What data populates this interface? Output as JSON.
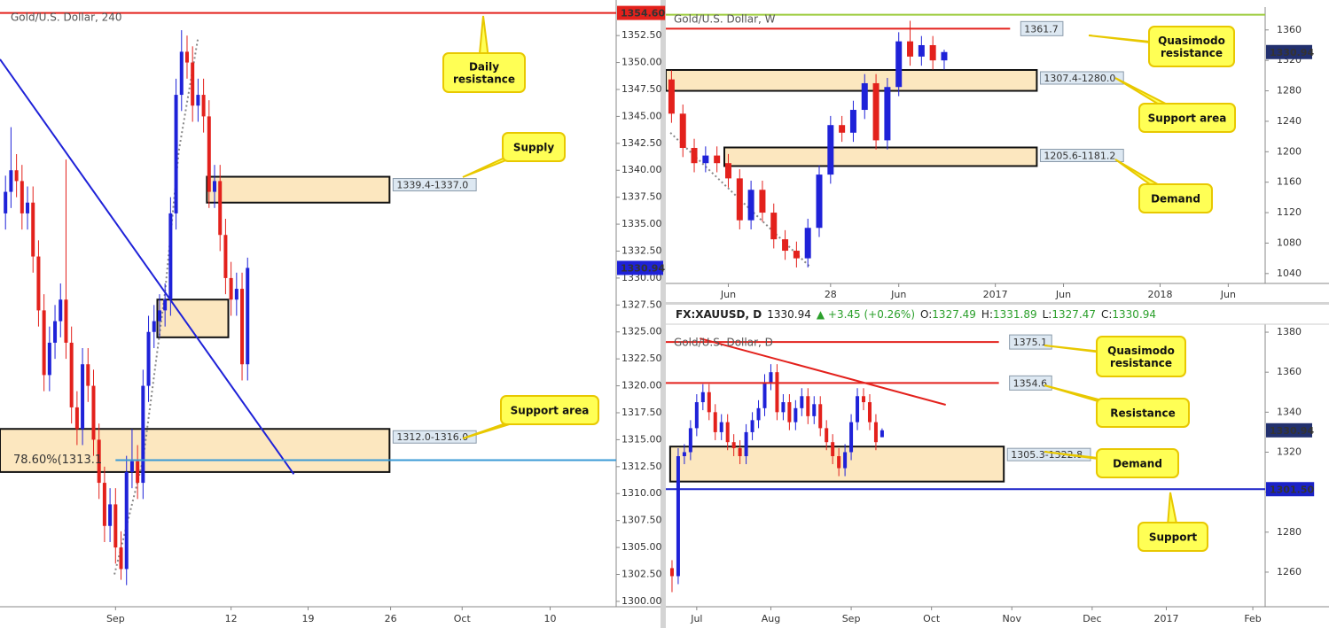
{
  "chart_data": [
    {
      "type": "candlestick",
      "title": "Gold/U.S. Dollar, 240",
      "x": [
        0,
        1,
        2,
        3,
        4,
        5,
        6,
        7,
        8,
        9,
        10,
        11,
        12,
        13,
        14,
        15,
        16,
        17,
        18,
        19,
        20,
        21,
        22,
        23,
        24,
        25,
        26,
        27,
        28,
        29,
        30,
        31,
        32,
        33,
        34,
        35,
        36,
        37,
        38,
        39,
        40,
        41,
        42,
        43,
        44
      ],
      "open": [
        1336,
        1338,
        1340,
        1339,
        1336,
        1337,
        1332,
        1327,
        1321,
        1324,
        1326,
        1328,
        1324,
        1318,
        1316,
        1322,
        1320,
        1315,
        1311,
        1307,
        1309,
        1305,
        1303,
        1312,
        1313,
        1311,
        1320,
        1325,
        1326,
        1327,
        1328,
        1336,
        1347,
        1351,
        1350,
        1346,
        1347,
        1345,
        1338,
        1339,
        1334,
        1330,
        1328,
        1329,
        1322
      ],
      "high": [
        1339.5,
        1344,
        1341.5,
        1340.5,
        1338.5,
        1338.5,
        1333.5,
        1328.5,
        1325.5,
        1327.5,
        1329.5,
        1341,
        1325.5,
        1319.5,
        1323.5,
        1323.5,
        1321.5,
        1316.5,
        1312.5,
        1310.5,
        1310.5,
        1306.5,
        1313.5,
        1316,
        1314.5,
        1321.5,
        1326.5,
        1327.5,
        1328.5,
        1329.5,
        1337.5,
        1348.5,
        1353,
        1352.5,
        1351.5,
        1348.5,
        1348.5,
        1346.5,
        1340.5,
        1340.5,
        1335.5,
        1331.5,
        1330.5,
        1330.5,
        1331.89
      ],
      "low": [
        1334.5,
        1336.5,
        1337.5,
        1334.5,
        1334.5,
        1330.5,
        1325.5,
        1319.5,
        1319.5,
        1322.5,
        1324.5,
        1322.5,
        1316.5,
        1314.5,
        1314.5,
        1318.5,
        1313.5,
        1309.5,
        1305.5,
        1305.5,
        1303.5,
        1302,
        1301.5,
        1310.5,
        1309.5,
        1309.5,
        1318.5,
        1323.5,
        1324.5,
        1325.5,
        1326.5,
        1334.5,
        1345.5,
        1348.5,
        1344.5,
        1344.5,
        1343.5,
        1336.5,
        1336.5,
        1332.5,
        1328.5,
        1326.5,
        1326.5,
        1320.5,
        1320.5
      ],
      "close": [
        1338,
        1340,
        1339,
        1336,
        1337,
        1332,
        1327,
        1321,
        1324,
        1326,
        1328,
        1324,
        1318,
        1316,
        1322,
        1320,
        1315,
        1311,
        1307,
        1309,
        1305,
        1303,
        1312,
        1313,
        1311,
        1320,
        1325,
        1326,
        1327,
        1328,
        1336,
        1347,
        1351,
        1350,
        1346,
        1347,
        1345,
        1338,
        1339,
        1334,
        1330,
        1328,
        1329,
        1322,
        1330.94
      ],
      "up_color": "#1f22d8",
      "down_color": "#e3211c",
      "zone_color": "#fce7bf",
      "xlim": [
        -1,
        111
      ],
      "ylim": [
        1299.5,
        1355.8
      ],
      "xticks": [
        {
          "value": 20,
          "label": "Sep"
        },
        {
          "value": 41,
          "label": "12"
        },
        {
          "value": 55,
          "label": "19"
        },
        {
          "value": 70,
          "label": "26"
        },
        {
          "value": 83,
          "label": "Oct"
        },
        {
          "value": 99,
          "label": "10"
        }
      ],
      "yticks": [
        {
          "value": 1300,
          "label": "1300.00"
        },
        {
          "value": 1302.5,
          "label": "1302.50"
        },
        {
          "value": 1305,
          "label": "1305.00"
        },
        {
          "value": 1307.5,
          "label": "1307.50"
        },
        {
          "value": 1310,
          "label": "1310.00"
        },
        {
          "value": 1312.5,
          "label": "1312.50"
        },
        {
          "value": 1315,
          "label": "1315.00"
        },
        {
          "value": 1317.5,
          "label": "1317.50"
        },
        {
          "value": 1320,
          "label": "1320.00"
        },
        {
          "value": 1322.5,
          "label": "1322.50"
        },
        {
          "value": 1325,
          "label": "1325.00"
        },
        {
          "value": 1327.5,
          "label": "1327.50"
        },
        {
          "value": 1330,
          "label": "1330.00"
        },
        {
          "value": 1332.5,
          "label": "1332.50"
        },
        {
          "value": 1335,
          "label": "1335.00"
        },
        {
          "value": 1337.5,
          "label": "1337.50"
        },
        {
          "value": 1340,
          "label": "1340.00"
        },
        {
          "value": 1342.5,
          "label": "1342.50"
        },
        {
          "value": 1345,
          "label": "1345.00"
        },
        {
          "value": 1347.5,
          "label": "1347.50"
        },
        {
          "value": 1350,
          "label": "1350.00"
        },
        {
          "value": 1352.5,
          "label": "1352.50"
        }
      ],
      "zones": [
        {
          "label": "1339.4-1337.0",
          "high": 1339.4,
          "low": 1337.0,
          "x": [
            36.6,
            69.8
          ]
        },
        {
          "high": 1328,
          "low": 1324.5,
          "x": [
            27.6,
            40.5
          ]
        },
        {
          "label": "1312.0-1316.0",
          "high": 1316.0,
          "low": 1312.0,
          "x": [
            -1,
            69.8
          ]
        }
      ],
      "levels": [
        {
          "value": 1354.6,
          "label": "1354.60",
          "color": "#e3211c",
          "x": [
            -1,
            111
          ],
          "label_pos": "axis"
        },
        {
          "value": 1313.1,
          "label": "78.60%(1313.1",
          "color": "#3a9ad6",
          "x": [
            20,
            111
          ],
          "label_pos": "left"
        }
      ],
      "trendlines": [
        {
          "x": [
            -1,
            52.4
          ],
          "y": [
            1350.3,
            1311.8
          ],
          "color": "#1f22d8",
          "style": "solid"
        },
        {
          "x": [
            19.8,
            25.0,
            29.0,
            31.5,
            35.0
          ],
          "y": [
            1302.5,
            1313.1,
            1328.7,
            1341.8,
            1352.3
          ],
          "color": "#888888",
          "style": "dotted"
        }
      ],
      "callouts": [
        {
          "text": [
            "Daily",
            "resistance"
          ]
        },
        {
          "text": [
            "Supply"
          ]
        },
        {
          "text": [
            "Support area"
          ]
        }
      ],
      "price": 1330.94,
      "price_color": "#1f22d8"
    },
    {
      "type": "candlestick",
      "title": "Gold/U.S. Dollar, W",
      "x": [
        0,
        2,
        4,
        6,
        8,
        10,
        12,
        14,
        16,
        18,
        20,
        22,
        24,
        26,
        28,
        30,
        32,
        34,
        36,
        38,
        40,
        42,
        44,
        46,
        48
      ],
      "open": [
        1295,
        1250,
        1205,
        1185,
        1195,
        1185,
        1165,
        1110,
        1150,
        1120,
        1085,
        1070,
        1060,
        1100,
        1170,
        1235,
        1225,
        1255,
        1290,
        1215,
        1285,
        1345,
        1325,
        1340,
        1320
      ],
      "high": [
        1307,
        1262,
        1217,
        1207,
        1207,
        1197,
        1177,
        1162,
        1162,
        1132,
        1097,
        1082,
        1112,
        1182,
        1247,
        1247,
        1267,
        1302,
        1302,
        1297,
        1357,
        1372,
        1352,
        1352,
        1334
      ],
      "low": [
        1238,
        1193,
        1173,
        1173,
        1173,
        1153,
        1098,
        1098,
        1108,
        1073,
        1058,
        1048,
        1048,
        1088,
        1158,
        1213,
        1213,
        1243,
        1203,
        1203,
        1273,
        1313,
        1313,
        1308,
        1308
      ],
      "close": [
        1250,
        1205,
        1185,
        1195,
        1185,
        1165,
        1110,
        1150,
        1120,
        1085,
        1070,
        1060,
        1100,
        1170,
        1235,
        1225,
        1255,
        1290,
        1215,
        1285,
        1345,
        1325,
        1340,
        1320,
        1330.94
      ],
      "up_color": "#1f22d8",
      "down_color": "#e3211c",
      "zone_color": "#fce7bf",
      "xlim": [
        -1,
        104.5
      ],
      "ylim": [
        1027,
        1390
      ],
      "xticks": [
        {
          "value": 10,
          "label": "Jun"
        },
        28,
        {
          "value": 40,
          "label": "Jun"
        },
        {
          "value": 57,
          "label": "2017"
        },
        {
          "value": 69,
          "label": "Jun"
        },
        {
          "value": 86,
          "label": "2018"
        },
        {
          "value": 98,
          "label": "Jun"
        }
      ],
      "yticks": [
        1040,
        1080,
        1120,
        1160,
        1200,
        1240,
        1280,
        1320,
        1360
      ],
      "zones": [
        {
          "label": "1307.4-1280.0",
          "high": 1307.4,
          "low": 1280.0,
          "x": [
            -1,
            64.3
          ]
        },
        {
          "label": "1205.6-1181.2",
          "high": 1205.6,
          "low": 1181.2,
          "x": [
            9.3,
            64.3
          ]
        }
      ],
      "levels": [
        {
          "value": 1380,
          "color": "#9ccc3c",
          "x": [
            -1,
            104.5
          ]
        },
        {
          "value": 1361.7,
          "label": "1361.7",
          "color": "#e3211c",
          "x": [
            -1,
            59.6
          ],
          "label_pos": "end"
        }
      ],
      "trendlines": [
        {
          "x": [
            -0.2,
            24.5
          ],
          "y": [
            1225,
            1048
          ],
          "color": "#888888",
          "style": "dotted"
        }
      ],
      "callouts": [
        {
          "text": [
            "Quasimodo",
            "resistance"
          ]
        },
        {
          "text": [
            "Support area"
          ]
        },
        {
          "text": [
            "Demand"
          ]
        }
      ],
      "price": 1330.94,
      "price_color": "#22306e"
    },
    {
      "type": "candlestick",
      "title": "Gold/U.S. Dollar, D",
      "header": {
        "symbol": "FX:XAUUSD, D",
        "last": "1330.94",
        "change": "▲ +3.45 (+0.26%)",
        "ohlc": [
          {
            "key": "O:",
            "value": "1327.49"
          },
          {
            "key": "H:",
            "value": "1331.89"
          },
          {
            "key": "L:",
            "value": "1327.47"
          },
          {
            "key": "C:",
            "value": "1330.94"
          }
        ]
      },
      "x": [
        0,
        1,
        2,
        3,
        4,
        5,
        6,
        7,
        8,
        9,
        10,
        11,
        12,
        13,
        14,
        15,
        16,
        17,
        18,
        19,
        20,
        21,
        22,
        23,
        24,
        25,
        26,
        27,
        28,
        29,
        30,
        31,
        32,
        33,
        34
      ],
      "open": [
        1262,
        1258,
        1318,
        1320,
        1332,
        1345,
        1350,
        1340,
        1330,
        1335,
        1325,
        1322,
        1318,
        1330,
        1336,
        1342,
        1355,
        1360,
        1340,
        1345,
        1335,
        1342,
        1348,
        1338,
        1344,
        1332,
        1325,
        1318,
        1312,
        1320,
        1335,
        1348,
        1345,
        1335,
        1327.49
      ],
      "high": [
        1266,
        1322,
        1324,
        1336,
        1349,
        1354,
        1354,
        1344,
        1339,
        1339,
        1329,
        1326,
        1334,
        1340,
        1346,
        1359,
        1364,
        1364,
        1349,
        1349,
        1346,
        1352,
        1352,
        1348,
        1348,
        1336,
        1329,
        1322,
        1324,
        1339,
        1352,
        1352,
        1349,
        1339,
        1331.89
      ],
      "low": [
        1250,
        1254,
        1314,
        1316,
        1328,
        1341,
        1336,
        1326,
        1326,
        1321,
        1318,
        1314,
        1314,
        1326,
        1332,
        1338,
        1351,
        1336,
        1336,
        1331,
        1331,
        1338,
        1334,
        1334,
        1328,
        1321,
        1314,
        1308,
        1308,
        1316,
        1331,
        1341,
        1331,
        1321,
        1327.47
      ],
      "close": [
        1258,
        1318,
        1320,
        1332,
        1345,
        1350,
        1340,
        1330,
        1335,
        1325,
        1322,
        1318,
        1330,
        1336,
        1342,
        1355,
        1360,
        1340,
        1345,
        1335,
        1342,
        1348,
        1338,
        1344,
        1332,
        1325,
        1318,
        1312,
        1320,
        1335,
        1348,
        1345,
        1335,
        1325,
        1330.94
      ],
      "up_color": "#1f22d8",
      "down_color": "#e3211c",
      "zone_color": "#fce7bf",
      "xlim": [
        -1,
        96
      ],
      "ylim": [
        1242.7,
        1384
      ],
      "xticks": [
        {
          "value": 4,
          "label": "Jul"
        },
        {
          "value": 16,
          "label": "Aug"
        },
        {
          "value": 29,
          "label": "Sep"
        },
        {
          "value": 42,
          "label": "Oct"
        },
        {
          "value": 55,
          "label": "Nov"
        },
        {
          "value": 68,
          "label": "Dec"
        },
        {
          "value": 80,
          "label": "2017"
        },
        {
          "value": 94,
          "label": "Feb"
        }
      ],
      "yticks": [
        1260,
        1280,
        1300,
        1320,
        1340,
        1360,
        1380
      ],
      "zones": [
        {
          "label": "1305.3-1322.8",
          "high": 1322.8,
          "low": 1305.3,
          "x": [
            -0.3,
            53.7
          ]
        }
      ],
      "levels": [
        {
          "value": 1375.1,
          "label": "1375.1",
          "color": "#e3211c",
          "x": [
            -1,
            52.9
          ],
          "label_pos": "end"
        },
        {
          "value": 1354.6,
          "label": "1354.6",
          "color": "#e3211c",
          "x": [
            -1,
            52.9
          ],
          "label_pos": "end"
        },
        {
          "value": 1301.5,
          "label": "1301.50",
          "color": "#1b22c8",
          "x": [
            -1,
            96
          ],
          "label_pos": "axis"
        }
      ],
      "trendlines": [
        {
          "x": [
            4.5,
            44.3
          ],
          "y": [
            1376.9,
            1343.7
          ],
          "color": "#e3211c",
          "style": "solid"
        }
      ],
      "callouts": [
        {
          "text": [
            "Quasimodo",
            "resistance"
          ]
        },
        {
          "text": [
            "Resistance"
          ]
        },
        {
          "text": [
            "Demand"
          ]
        },
        {
          "text": [
            "Support"
          ]
        }
      ],
      "price": 1330.94,
      "price_color": "#22306e"
    }
  ]
}
